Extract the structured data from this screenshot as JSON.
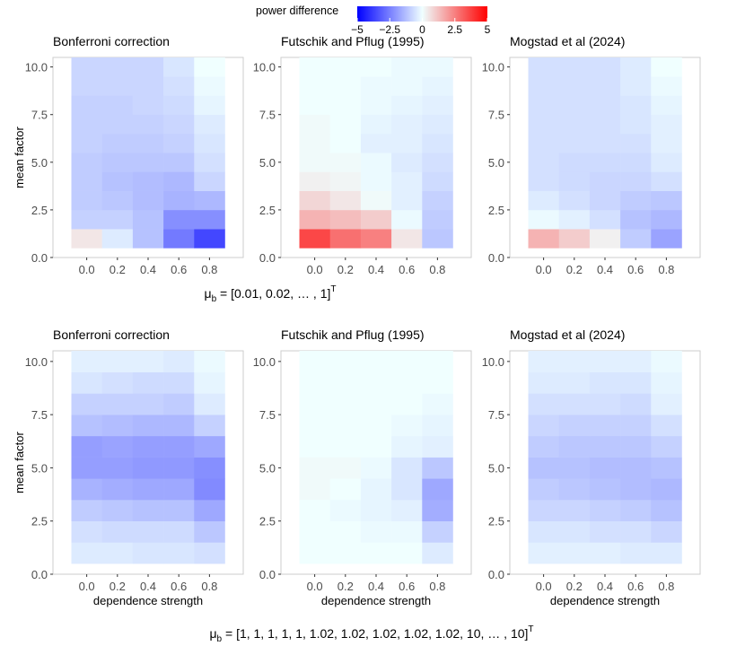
{
  "legend": {
    "title": "power difference",
    "ticks": [
      "−5",
      "−2.5",
      "0",
      "2.5",
      "5"
    ],
    "tick_values": [
      -5,
      -2.5,
      0,
      2.5,
      5
    ],
    "colors": {
      "low": "#0000ff",
      "mid": "#f0ffff",
      "high": "#ff0000"
    }
  },
  "chart_data": [
    {
      "type": "heatmap",
      "row": 1,
      "title": "Bonferroni correction",
      "xlabel": "",
      "ylabel": "mean factor",
      "x": [
        0.0,
        0.2,
        0.4,
        0.6,
        0.8
      ],
      "x_tick_labels": [
        "0.0",
        "0.2",
        "0.4",
        "0.6",
        "0.8"
      ],
      "y": [
        1,
        2,
        3,
        4,
        5,
        6,
        7,
        8,
        9,
        10
      ],
      "y_tick_labels": [
        "0.0",
        "2.5",
        "5.0",
        "7.5",
        "10.0"
      ],
      "ylim": [
        0,
        10.5
      ],
      "z_rows": [
        [
          0.5,
          -0.4,
          -1.2,
          -2.6,
          -3.6
        ],
        [
          -0.9,
          -0.9,
          -1.2,
          -2.2,
          -2.2
        ],
        [
          -1.0,
          -1.1,
          -1.3,
          -1.5,
          -1.4
        ],
        [
          -1.0,
          -1.2,
          -1.3,
          -1.4,
          -0.8
        ],
        [
          -1.0,
          -1.1,
          -1.1,
          -1.1,
          -0.6
        ],
        [
          -0.9,
          -1.0,
          -1.0,
          -0.9,
          -0.5
        ],
        [
          -0.9,
          -0.9,
          -0.9,
          -0.8,
          -0.4
        ],
        [
          -0.9,
          -0.9,
          -0.8,
          -0.7,
          -0.2
        ],
        [
          -0.8,
          -0.8,
          -0.8,
          -0.6,
          -0.1
        ],
        [
          -0.8,
          -0.8,
          -0.8,
          -0.5,
          0.0
        ]
      ]
    },
    {
      "type": "heatmap",
      "row": 1,
      "title": "Futschik and Pflug (1995)",
      "xlabel": "",
      "ylabel": "",
      "x": [
        0.0,
        0.2,
        0.4,
        0.6,
        0.8
      ],
      "x_tick_labels": [
        "0.0",
        "0.2",
        "0.4",
        "0.6",
        "0.8"
      ],
      "y": [
        1,
        2,
        3,
        4,
        5,
        6,
        7,
        8,
        9,
        10
      ],
      "y_tick_labels": [
        "0.0",
        "2.5",
        "5.0",
        "7.5",
        "10.0"
      ],
      "ylim": [
        0,
        10.5
      ],
      "z_rows": [
        [
          3.6,
          2.8,
          2.5,
          0.5,
          -1.1
        ],
        [
          1.5,
          1.3,
          1.0,
          -0.1,
          -1.0
        ],
        [
          0.8,
          0.5,
          0.1,
          -0.3,
          -0.9
        ],
        [
          0.3,
          0.2,
          -0.1,
          -0.3,
          -0.7
        ],
        [
          0.1,
          0.1,
          -0.1,
          -0.4,
          -0.6
        ],
        [
          0.1,
          0.0,
          -0.3,
          -0.3,
          -0.5
        ],
        [
          0.1,
          0.0,
          -0.2,
          -0.3,
          -0.4
        ],
        [
          0.0,
          0.0,
          -0.1,
          -0.2,
          -0.3
        ],
        [
          0.0,
          0.0,
          -0.1,
          -0.1,
          -0.2
        ],
        [
          0.0,
          0.0,
          0.0,
          -0.1,
          -0.1
        ]
      ]
    },
    {
      "type": "heatmap",
      "row": 1,
      "title": "Mogstad et al (2024)",
      "xlabel": "",
      "ylabel": "",
      "x": [
        0.0,
        0.2,
        0.4,
        0.6,
        0.8
      ],
      "x_tick_labels": [
        "0.0",
        "0.2",
        "0.4",
        "0.6",
        "0.8"
      ],
      "y": [
        1,
        2,
        3,
        4,
        5,
        6,
        7,
        8,
        9,
        10
      ],
      "y_tick_labels": [
        "0.0",
        "2.5",
        "5.0",
        "7.5",
        "10.0"
      ],
      "ylim": [
        0,
        10.5
      ],
      "z_rows": [
        [
          1.5,
          1.0,
          0.3,
          -1.0,
          -1.8
        ],
        [
          -0.1,
          -0.3,
          -0.6,
          -1.2,
          -1.4
        ],
        [
          -0.4,
          -0.6,
          -0.8,
          -1.0,
          -1.1
        ],
        [
          -0.6,
          -0.7,
          -0.8,
          -0.8,
          -0.6
        ],
        [
          -0.6,
          -0.7,
          -0.7,
          -0.7,
          -0.4
        ],
        [
          -0.6,
          -0.6,
          -0.6,
          -0.6,
          -0.3
        ],
        [
          -0.6,
          -0.6,
          -0.6,
          -0.5,
          -0.3
        ],
        [
          -0.6,
          -0.6,
          -0.6,
          -0.5,
          -0.2
        ],
        [
          -0.6,
          -0.6,
          -0.6,
          -0.4,
          -0.1
        ],
        [
          -0.6,
          -0.6,
          -0.6,
          -0.4,
          0.0
        ]
      ]
    },
    {
      "type": "heatmap",
      "row": 2,
      "title": "Bonferroni correction",
      "xlabel": "dependence strength",
      "ylabel": "mean factor",
      "x": [
        0.0,
        0.2,
        0.4,
        0.6,
        0.8
      ],
      "x_tick_labels": [
        "0.0",
        "0.2",
        "0.4",
        "0.6",
        "0.8"
      ],
      "y": [
        1,
        2,
        3,
        4,
        5,
        6,
        7,
        8,
        9,
        10
      ],
      "y_tick_labels": [
        "0.0",
        "2.5",
        "5.0",
        "7.5",
        "10.0"
      ],
      "ylim": [
        0,
        10.5
      ],
      "z_rows": [
        [
          -0.4,
          -0.4,
          -0.5,
          -0.5,
          -0.6
        ],
        [
          -0.6,
          -0.7,
          -0.7,
          -0.7,
          -1.1
        ],
        [
          -1.0,
          -1.1,
          -1.2,
          -1.2,
          -1.7
        ],
        [
          -1.5,
          -1.6,
          -1.7,
          -1.7,
          -2.3
        ],
        [
          -1.9,
          -1.9,
          -2.0,
          -2.0,
          -2.2
        ],
        [
          -1.9,
          -1.8,
          -1.9,
          -1.9,
          -1.7
        ],
        [
          -1.2,
          -1.3,
          -1.4,
          -1.4,
          -0.9
        ],
        [
          -0.9,
          -0.9,
          -0.9,
          -1.0,
          -0.4
        ],
        [
          -0.5,
          -0.6,
          -0.7,
          -0.7,
          -0.2
        ],
        [
          -0.3,
          -0.3,
          -0.3,
          -0.4,
          -0.1
        ]
      ]
    },
    {
      "type": "heatmap",
      "row": 2,
      "title": "Futschik and Pflug (1995)",
      "xlabel": "dependence strength",
      "ylabel": "",
      "x": [
        0.0,
        0.2,
        0.4,
        0.6,
        0.8
      ],
      "x_tick_labels": [
        "0.0",
        "0.2",
        "0.4",
        "0.6",
        "0.8"
      ],
      "y": [
        1,
        2,
        3,
        4,
        5,
        6,
        7,
        8,
        9,
        10
      ],
      "y_tick_labels": [
        "0.0",
        "2.5",
        "5.0",
        "7.5",
        "10.0"
      ],
      "ylim": [
        0,
        10.5
      ],
      "z_rows": [
        [
          0.0,
          0.0,
          0.0,
          0.0,
          -0.4
        ],
        [
          0.0,
          0.0,
          -0.1,
          -0.1,
          -0.9
        ],
        [
          0.0,
          -0.1,
          -0.2,
          -0.3,
          -1.6
        ],
        [
          0.1,
          0.0,
          -0.2,
          -0.5,
          -1.7
        ],
        [
          0.1,
          0.1,
          -0.1,
          -0.5,
          -1.1
        ],
        [
          0.0,
          0.0,
          0.0,
          -0.2,
          -0.3
        ],
        [
          0.0,
          0.0,
          0.0,
          -0.1,
          -0.2
        ],
        [
          0.0,
          0.0,
          0.0,
          0.0,
          -0.1
        ],
        [
          0.0,
          0.0,
          0.0,
          0.0,
          0.0
        ],
        [
          0.0,
          0.0,
          0.0,
          0.0,
          0.0
        ]
      ]
    },
    {
      "type": "heatmap",
      "row": 2,
      "title": "Mogstad et al (2024)",
      "xlabel": "dependence strength",
      "ylabel": "",
      "x": [
        0.0,
        0.2,
        0.4,
        0.6,
        0.8
      ],
      "x_tick_labels": [
        "0.0",
        "0.2",
        "0.4",
        "0.6",
        "0.8"
      ],
      "y": [
        1,
        2,
        3,
        4,
        5,
        6,
        7,
        8,
        9,
        10
      ],
      "y_tick_labels": [
        "0.0",
        "2.5",
        "5.0",
        "7.5",
        "10.0"
      ],
      "ylim": [
        0,
        10.5
      ],
      "z_rows": [
        [
          -0.3,
          -0.3,
          -0.3,
          -0.4,
          -0.4
        ],
        [
          -0.5,
          -0.5,
          -0.6,
          -0.6,
          -0.8
        ],
        [
          -0.8,
          -0.8,
          -0.9,
          -1.0,
          -1.2
        ],
        [
          -1.0,
          -1.1,
          -1.2,
          -1.3,
          -1.4
        ],
        [
          -1.2,
          -1.2,
          -1.3,
          -1.3,
          -1.2
        ],
        [
          -1.0,
          -1.1,
          -1.1,
          -1.1,
          -0.9
        ],
        [
          -0.8,
          -0.9,
          -0.9,
          -0.9,
          -0.6
        ],
        [
          -0.6,
          -0.6,
          -0.6,
          -0.7,
          -0.3
        ],
        [
          -0.4,
          -0.4,
          -0.5,
          -0.5,
          -0.2
        ],
        [
          -0.3,
          -0.3,
          -0.3,
          -0.3,
          -0.1
        ]
      ]
    }
  ],
  "row_captions": [
    {
      "symbol": "μ",
      "sub": "b",
      "text": " = [0.01, 0.02,  … , 1]",
      "sup": "T"
    },
    {
      "symbol": "μ",
      "sub": "b",
      "text": " = [1, 1, 1, 1, 1, 1.02, 1.02, 1.02, 1.02, 1.02, 10,  … , 10]",
      "sup": "T"
    }
  ]
}
